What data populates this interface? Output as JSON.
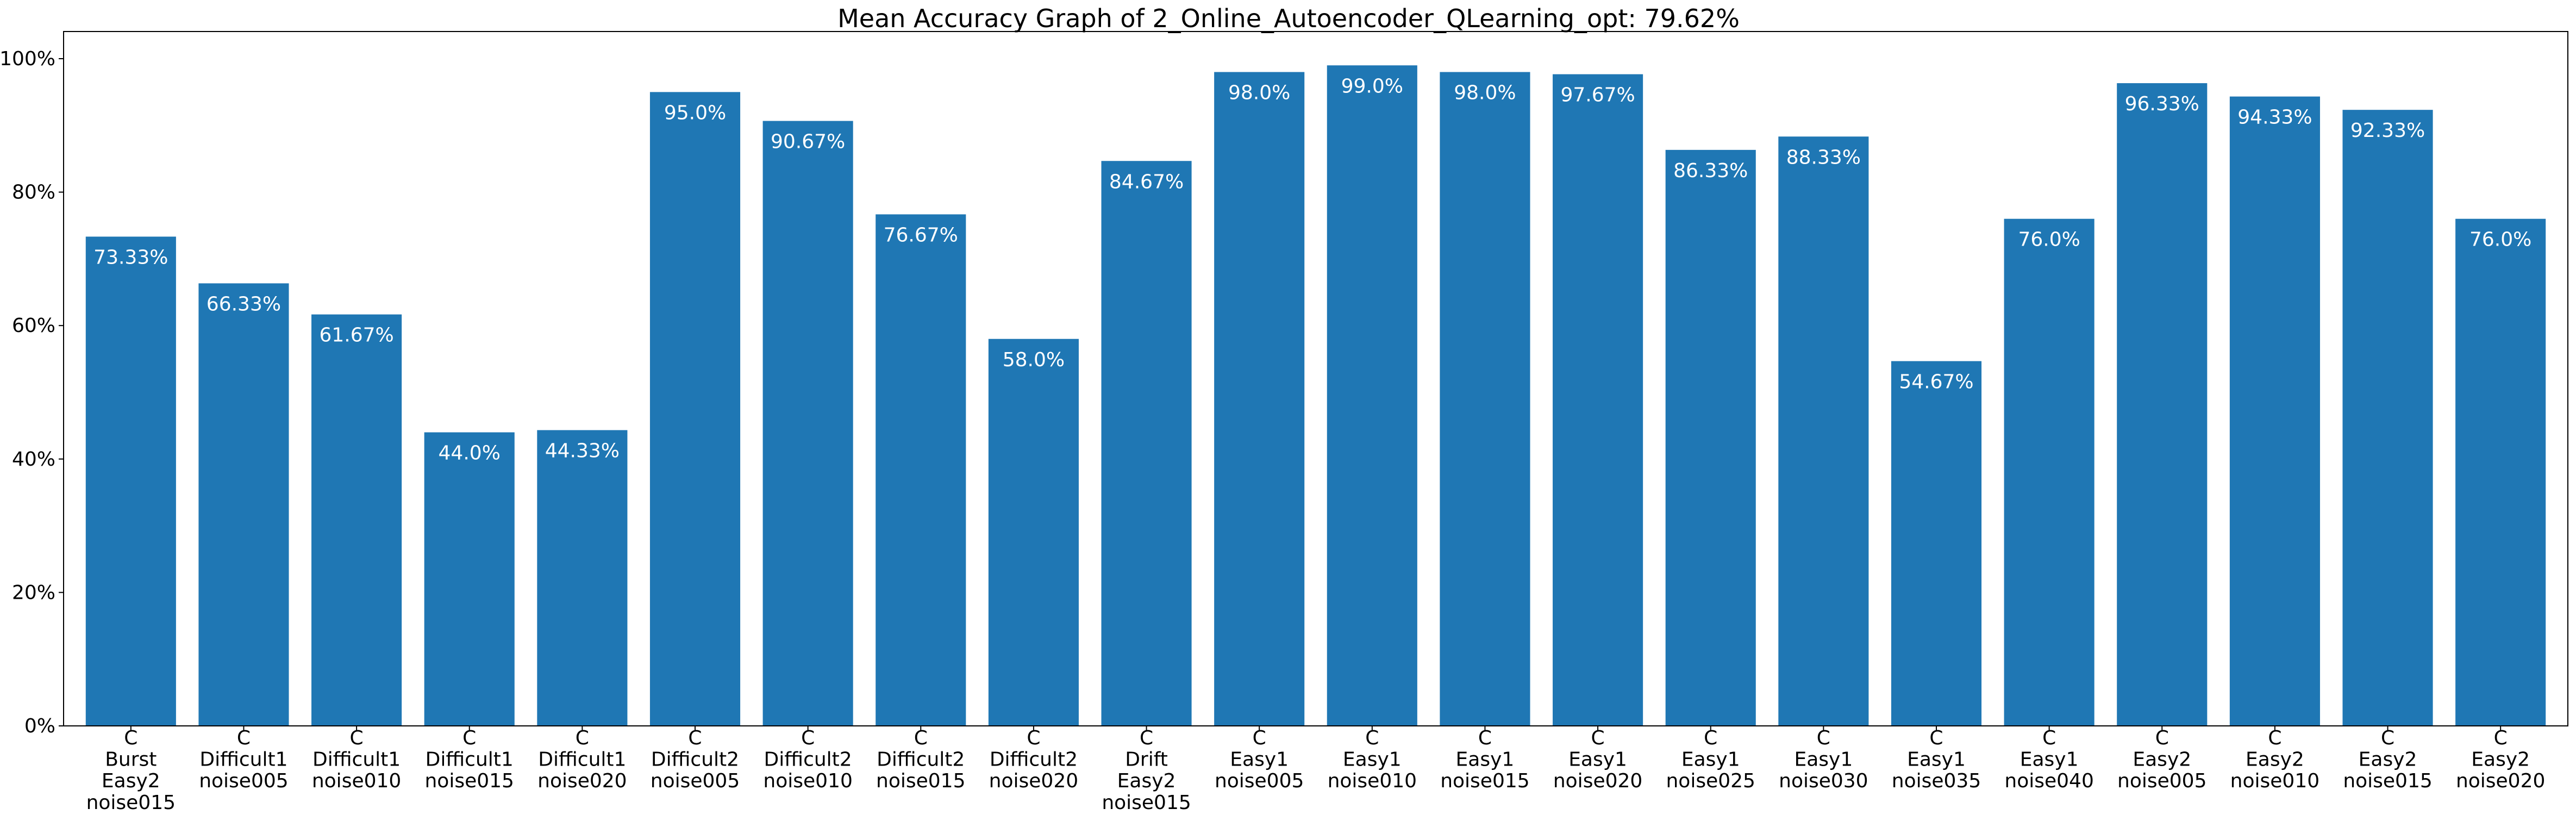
{
  "chart_data": {
    "type": "bar",
    "title": "Mean Accuracy Graph of 2_Online_Autoencoder_QLearning_opt: 79.62%",
    "xlabel": "",
    "ylabel": "",
    "ylim": [
      0,
      100
    ],
    "yticks": [
      0,
      20,
      40,
      60,
      80,
      100
    ],
    "ytick_labels": [
      "0%",
      "20%",
      "40%",
      "60%",
      "80%",
      "100%"
    ],
    "bar_color": "#1f77b4",
    "label_color": "#ffffff",
    "categories": [
      [
        "C",
        "Burst",
        "Easy2",
        "noise015"
      ],
      [
        "C",
        "Difficult1",
        "noise005"
      ],
      [
        "C",
        "Difficult1",
        "noise010"
      ],
      [
        "C",
        "Difficult1",
        "noise015"
      ],
      [
        "C",
        "Difficult1",
        "noise020"
      ],
      [
        "C",
        "Difficult2",
        "noise005"
      ],
      [
        "C",
        "Difficult2",
        "noise010"
      ],
      [
        "C",
        "Difficult2",
        "noise015"
      ],
      [
        "C",
        "Difficult2",
        "noise020"
      ],
      [
        "C",
        "Drift",
        "Easy2",
        "noise015"
      ],
      [
        "C",
        "Easy1",
        "noise005"
      ],
      [
        "C",
        "Easy1",
        "noise010"
      ],
      [
        "C",
        "Easy1",
        "noise015"
      ],
      [
        "C",
        "Easy1",
        "noise020"
      ],
      [
        "C",
        "Easy1",
        "noise025"
      ],
      [
        "C",
        "Easy1",
        "noise030"
      ],
      [
        "C",
        "Easy1",
        "noise035"
      ],
      [
        "C",
        "Easy1",
        "noise040"
      ],
      [
        "C",
        "Easy2",
        "noise005"
      ],
      [
        "C",
        "Easy2",
        "noise010"
      ],
      [
        "C",
        "Easy2",
        "noise015"
      ],
      [
        "C",
        "Easy2",
        "noise020"
      ]
    ],
    "values": [
      73.33,
      66.33,
      61.67,
      44.0,
      44.33,
      95.0,
      90.67,
      76.67,
      58.0,
      84.67,
      98.0,
      99.0,
      98.0,
      97.67,
      86.33,
      88.33,
      54.67,
      76.0,
      96.33,
      94.33,
      92.33,
      76.0
    ],
    "data_labels": [
      "73.33%",
      "66.33%",
      "61.67%",
      "44.0%",
      "44.33%",
      "95.0%",
      "90.67%",
      "76.67%",
      "58.0%",
      "84.67%",
      "98.0%",
      "99.0%",
      "98.0%",
      "97.67%",
      "86.33%",
      "88.33%",
      "54.67%",
      "76.0%",
      "96.33%",
      "94.33%",
      "92.33%",
      "76.0%"
    ]
  }
}
